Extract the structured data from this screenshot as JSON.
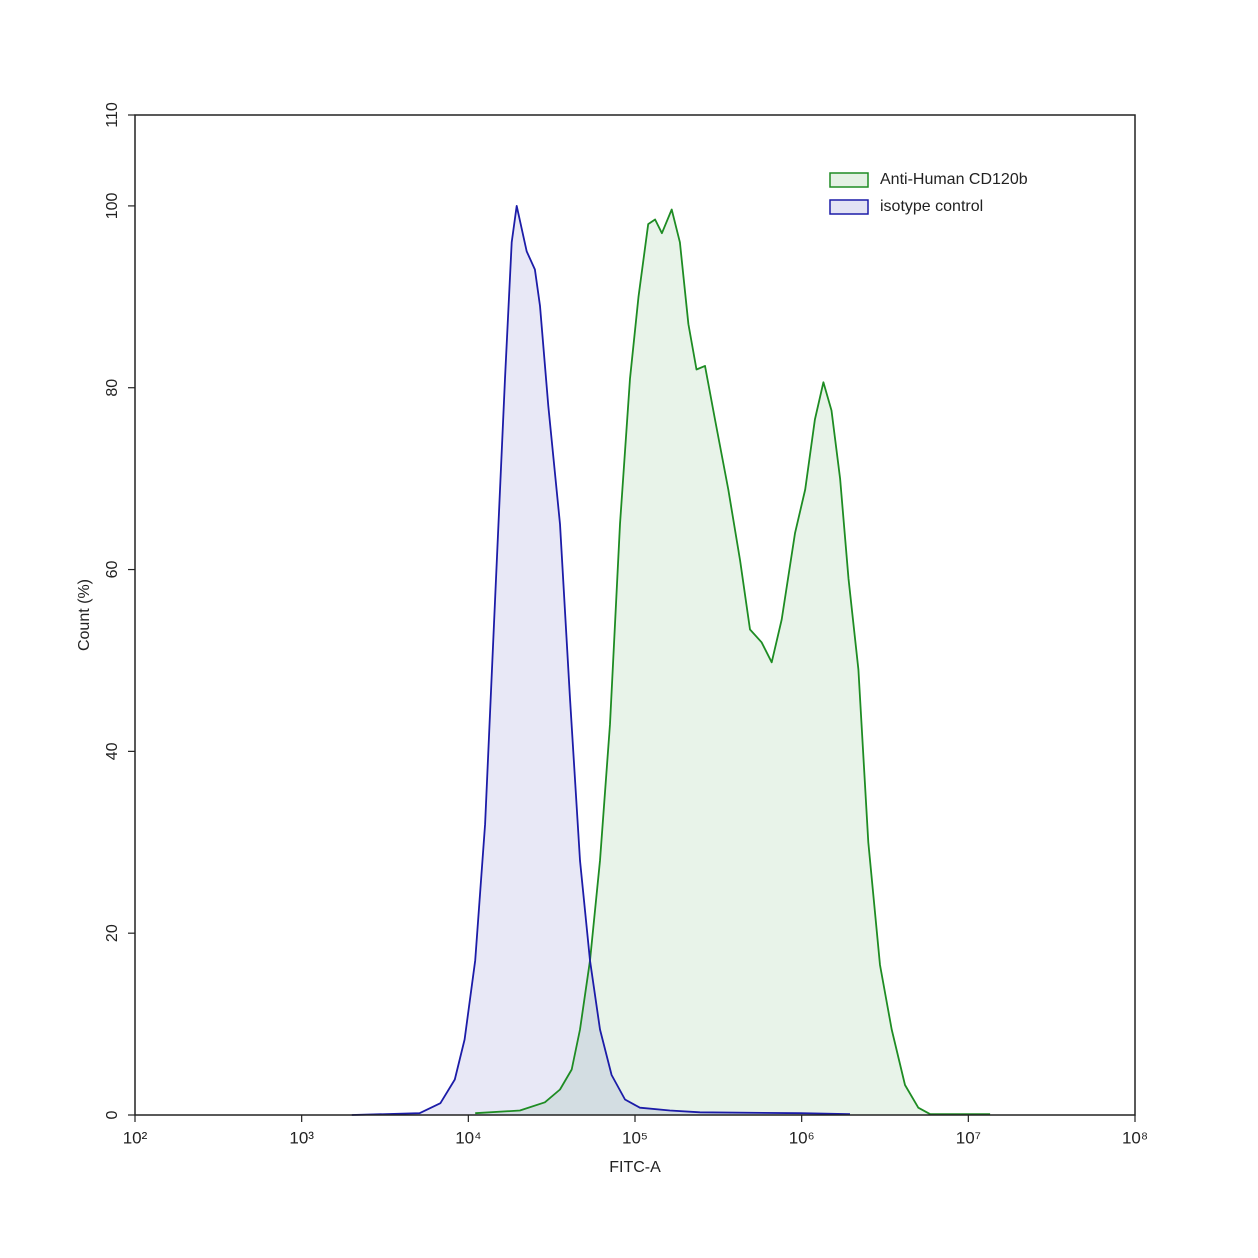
{
  "chart_data": {
    "type": "area",
    "x_label": "FITC-A",
    "y_label": "Count  (%)",
    "xscale": "log",
    "xlim": [
      100,
      100000000
    ],
    "xticks": [
      {
        "value": 100,
        "label": "10²"
      },
      {
        "value": 1000,
        "label": "10³"
      },
      {
        "value": 10000,
        "label": "10⁴"
      },
      {
        "value": 100000,
        "label": "10⁵"
      },
      {
        "value": 1000000,
        "label": "10⁶"
      },
      {
        "value": 10000000,
        "label": "10⁷"
      },
      {
        "value": 100000000,
        "label": "10⁸"
      }
    ],
    "ylim": [
      0,
      110
    ],
    "yticks": [
      0,
      20,
      40,
      60,
      80,
      100,
      110
    ],
    "legend": "upper right",
    "series": [
      {
        "name": "Anti-Human CD120b",
        "color": "#1e8c23",
        "x": [
          11000,
          20400,
          28800,
          35500,
          41700,
          46800,
          53700,
          61700,
          70800,
          81300,
          93300,
          105000,
          120000,
          132000,
          145000,
          166000,
          186000,
          209000,
          234000,
          263000,
          302000,
          363000,
          427000,
          490000,
          575000,
          661000,
          759000,
          912000,
          1050000,
          1200000,
          1350000,
          1510000,
          1700000,
          1910000,
          2190000,
          2510000,
          2950000,
          3470000,
          4170000,
          5010000,
          5890000,
          13500000
        ],
        "values": [
          0.2,
          0.5,
          1.4,
          2.8,
          5,
          9.4,
          17,
          28,
          43,
          65,
          81,
          90,
          98,
          98.5,
          97,
          99.6,
          96,
          87,
          82,
          82.4,
          76.5,
          68.8,
          61,
          53.4,
          52,
          49.8,
          54.5,
          64,
          68.8,
          76.5,
          80.6,
          77.5,
          70,
          59,
          49,
          30,
          16.5,
          9.4,
          3.3,
          0.8,
          0.1,
          0.1
        ]
      },
      {
        "name": "isotype control",
        "color": "#1c1ca8",
        "x": [
          2000,
          5100,
          6800,
          8300,
          9500,
          11000,
          12600,
          14500,
          16600,
          18200,
          19500,
          22400,
          25100,
          26900,
          30200,
          35500,
          40700,
          46800,
          53700,
          61700,
          72400,
          87100,
          107000,
          162000,
          245000,
          977000,
          1950000
        ],
        "values": [
          0,
          0.2,
          1.3,
          3.9,
          8.3,
          17,
          32,
          57,
          81,
          96,
          100,
          95,
          93,
          89,
          78,
          65,
          46,
          28,
          17,
          9.4,
          4.4,
          1.7,
          0.8,
          0.5,
          0.3,
          0.2,
          0.1
        ]
      }
    ]
  }
}
